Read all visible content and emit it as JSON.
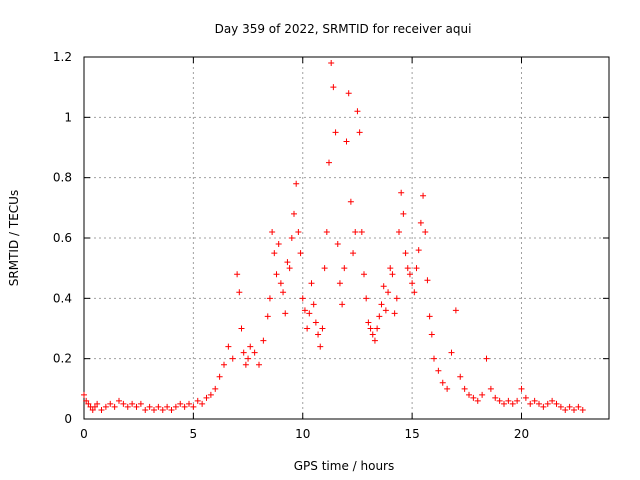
{
  "chart_data": {
    "type": "scatter",
    "title": "Day 359 of 2022, SRMTID for receiver aqui",
    "xlabel": "GPS time / hours",
    "ylabel": "SRMTID / TECUs",
    "xlim": [
      0,
      24
    ],
    "ylim": [
      0,
      1.2
    ],
    "xticks": [
      0,
      5,
      10,
      15,
      20
    ],
    "yticks": [
      0,
      0.2,
      0.4,
      0.6,
      0.8,
      1,
      1.2
    ],
    "xtick_labels": [
      "0",
      "5",
      "10",
      "15",
      "20"
    ],
    "ytick_labels": [
      "0",
      "0.2",
      "0.4",
      "0.6",
      "0.8",
      "1",
      "1.2"
    ],
    "grid": true,
    "marker": "+",
    "color": "#ff0000",
    "series": [
      {
        "name": "SRMTID",
        "x": [
          0.0,
          0.1,
          0.2,
          0.3,
          0.4,
          0.5,
          0.6,
          0.8,
          1.0,
          1.2,
          1.4,
          1.6,
          1.8,
          2.0,
          2.2,
          2.4,
          2.6,
          2.8,
          3.0,
          3.2,
          3.4,
          3.6,
          3.8,
          4.0,
          4.2,
          4.4,
          4.6,
          4.8,
          5.0,
          5.2,
          5.4,
          5.6,
          5.8,
          6.0,
          6.2,
          6.4,
          6.6,
          6.8,
          7.0,
          7.1,
          7.2,
          7.3,
          7.4,
          7.5,
          7.6,
          7.8,
          8.0,
          8.2,
          8.4,
          8.5,
          8.6,
          8.7,
          8.8,
          8.9,
          9.0,
          9.1,
          9.2,
          9.3,
          9.4,
          9.5,
          9.6,
          9.7,
          9.8,
          9.9,
          10.0,
          10.1,
          10.2,
          10.3,
          10.4,
          10.5,
          10.6,
          10.7,
          10.8,
          10.9,
          11.0,
          11.1,
          11.2,
          11.3,
          11.4,
          11.5,
          11.6,
          11.7,
          11.8,
          11.9,
          12.0,
          12.1,
          12.2,
          12.3,
          12.4,
          12.5,
          12.6,
          12.7,
          12.8,
          12.9,
          13.0,
          13.1,
          13.2,
          13.3,
          13.4,
          13.5,
          13.6,
          13.7,
          13.8,
          13.9,
          14.0,
          14.1,
          14.2,
          14.3,
          14.4,
          14.5,
          14.6,
          14.7,
          14.8,
          14.9,
          15.0,
          15.1,
          15.2,
          15.3,
          15.4,
          15.5,
          15.6,
          15.7,
          15.8,
          15.9,
          16.0,
          16.2,
          16.4,
          16.6,
          16.8,
          17.0,
          17.2,
          17.4,
          17.6,
          17.8,
          18.0,
          18.2,
          18.4,
          18.6,
          18.8,
          19.0,
          19.2,
          19.4,
          19.6,
          19.8,
          20.0,
          20.2,
          20.4,
          20.6,
          20.8,
          21.0,
          21.2,
          21.4,
          21.6,
          21.8,
          22.0,
          22.2,
          22.4,
          22.6,
          22.8
        ],
        "y": [
          0.08,
          0.06,
          0.05,
          0.04,
          0.03,
          0.04,
          0.05,
          0.03,
          0.04,
          0.05,
          0.04,
          0.06,
          0.05,
          0.04,
          0.05,
          0.04,
          0.05,
          0.03,
          0.04,
          0.03,
          0.04,
          0.03,
          0.04,
          0.03,
          0.04,
          0.05,
          0.04,
          0.05,
          0.04,
          0.06,
          0.05,
          0.07,
          0.08,
          0.1,
          0.14,
          0.18,
          0.24,
          0.2,
          0.48,
          0.42,
          0.3,
          0.22,
          0.18,
          0.2,
          0.24,
          0.22,
          0.18,
          0.26,
          0.34,
          0.4,
          0.62,
          0.55,
          0.48,
          0.58,
          0.45,
          0.42,
          0.35,
          0.52,
          0.5,
          0.6,
          0.68,
          0.78,
          0.62,
          0.55,
          0.4,
          0.36,
          0.3,
          0.35,
          0.45,
          0.38,
          0.32,
          0.28,
          0.24,
          0.3,
          0.5,
          0.62,
          0.85,
          1.18,
          1.1,
          0.95,
          0.58,
          0.45,
          0.38,
          0.5,
          0.92,
          1.08,
          0.72,
          0.55,
          0.62,
          1.02,
          0.95,
          0.62,
          0.48,
          0.4,
          0.32,
          0.3,
          0.28,
          0.26,
          0.3,
          0.34,
          0.38,
          0.44,
          0.36,
          0.42,
          0.5,
          0.48,
          0.35,
          0.4,
          0.62,
          0.75,
          0.68,
          0.55,
          0.5,
          0.48,
          0.45,
          0.42,
          0.5,
          0.56,
          0.65,
          0.74,
          0.62,
          0.46,
          0.34,
          0.28,
          0.2,
          0.16,
          0.12,
          0.1,
          0.22,
          0.36,
          0.14,
          0.1,
          0.08,
          0.07,
          0.06,
          0.08,
          0.2,
          0.1,
          0.07,
          0.06,
          0.05,
          0.06,
          0.05,
          0.06,
          0.1,
          0.07,
          0.05,
          0.06,
          0.05,
          0.04,
          0.05,
          0.06,
          0.05,
          0.04,
          0.03,
          0.04,
          0.03,
          0.04,
          0.03
        ]
      }
    ]
  }
}
